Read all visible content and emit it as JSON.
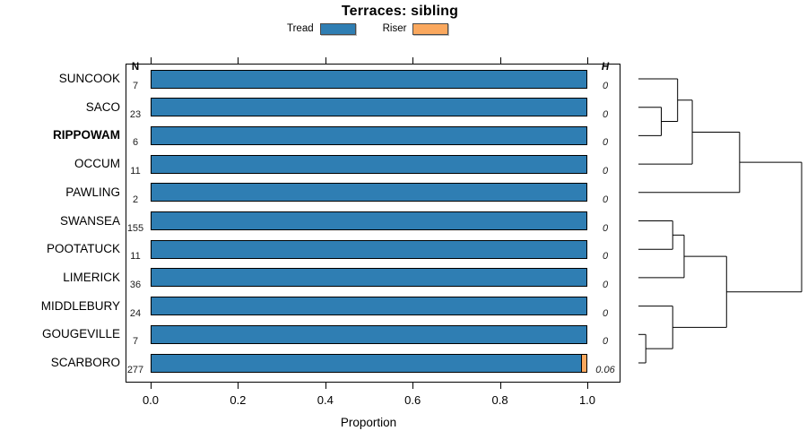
{
  "title": "Terraces: sibling",
  "legend": {
    "items": [
      {
        "label": "Tread",
        "color": "#2f7eb3"
      },
      {
        "label": "Riser",
        "color": "#faa85e"
      }
    ]
  },
  "columns": {
    "n_header": "N",
    "h_header": "H"
  },
  "axis": {
    "label": "Proportion",
    "tick_labels": [
      "0.0",
      "0.2",
      "0.4",
      "0.6",
      "0.8",
      "1.0"
    ],
    "tick_values": [
      0,
      0.2,
      0.4,
      0.6,
      0.8,
      1.0
    ]
  },
  "chart_data": {
    "type": "bar",
    "orientation": "horizontal-stacked",
    "title": "Terraces: sibling",
    "xlabel": "Proportion",
    "xlim": [
      0,
      1
    ],
    "categories": [
      "SUNCOOK",
      "SACO",
      "RIPPOWAM",
      "OCCUM",
      "PAWLING",
      "SWANSEA",
      "POOTATUCK",
      "LIMERICK",
      "MIDDLEBURY",
      "GOUGEVILLE",
      "SCARBORO"
    ],
    "bold_categories": [
      "RIPPOWAM"
    ],
    "n_values": [
      7,
      23,
      6,
      11,
      2,
      155,
      11,
      36,
      24,
      7,
      277
    ],
    "h_values": [
      "0",
      "0",
      "0",
      "0",
      "0",
      "0",
      "0",
      "0",
      "0",
      "0",
      "0.06"
    ],
    "series": [
      {
        "name": "Tread",
        "color": "#2f7eb3",
        "values": [
          1,
          1,
          1,
          1,
          1,
          1,
          1,
          1,
          1,
          1,
          0.988
        ]
      },
      {
        "name": "Riser",
        "color": "#faa85e",
        "values": [
          0,
          0,
          0,
          0,
          0,
          0,
          0,
          0,
          0,
          0,
          0.012
        ]
      }
    ],
    "legend_position": "top",
    "grid": false,
    "dendrogram": {
      "side": "right",
      "merges": [
        {
          "a": "SACO",
          "b": "RIPPOWAM",
          "h": 0.14
        },
        {
          "a": "SUNCOOK",
          "b": 0,
          "h": 0.24
        },
        {
          "a": 1,
          "b": "OCCUM",
          "h": 0.33
        },
        {
          "a": 2,
          "b": "PAWLING",
          "h": 0.62
        },
        {
          "a": "SWANSEA",
          "b": "POOTATUCK",
          "h": 0.21
        },
        {
          "a": 4,
          "b": "LIMERICK",
          "h": 0.28
        },
        {
          "a": "GOUGEVILLE",
          "b": "SCARBORO",
          "h": 0.045
        },
        {
          "a": "MIDDLEBURY",
          "b": 6,
          "h": 0.21
        },
        {
          "a": 5,
          "b": 7,
          "h": 0.54
        },
        {
          "a": 3,
          "b": 8,
          "h": 1.0
        }
      ]
    }
  }
}
